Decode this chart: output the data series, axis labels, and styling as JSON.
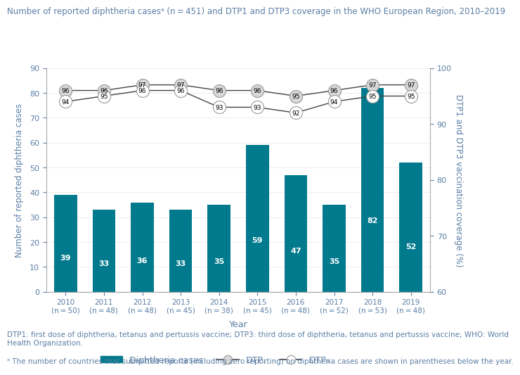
{
  "title": "Number of reported diphtheria casesᵃ (n = 451) and DTP1 and DTP3 coverage in the WHO European Region, 2010–2019",
  "years": [
    2010,
    2011,
    2012,
    2013,
    2014,
    2015,
    2016,
    2017,
    2018,
    2019
  ],
  "year_labels": [
    "2010\n(n = 50)",
    "2011\n(n = 48)",
    "2012\n(n = 48)",
    "2013\n(n = 45)",
    "2014\n(n = 38)",
    "2015\n(n = 45)",
    "2016\n(n = 48)",
    "2017\n(n = 52)",
    "2018\n(n = 53)",
    "2019\n(n = 48)"
  ],
  "diphtheria_cases": [
    39,
    33,
    36,
    33,
    35,
    59,
    47,
    35,
    82,
    52
  ],
  "dtp1": [
    96,
    96,
    97,
    97,
    96,
    96,
    95,
    96,
    97,
    97
  ],
  "dtp3": [
    94,
    95,
    96,
    96,
    93,
    93,
    92,
    94,
    95,
    95
  ],
  "bar_color": "#007A8C",
  "text_color": "#5B7FA6",
  "line_color": "#444444",
  "marker_face_color": "#D8D8D8",
  "marker_edge_color": "#999999",
  "ylabel_left": "Number of reported diphtheria cases",
  "ylabel_right": "DTP1 and DTP3 vaccination coverage (%)",
  "xlabel": "Year",
  "ylim_left": [
    0,
    90
  ],
  "ylim_right": [
    60,
    100
  ],
  "yticks_left": [
    0,
    10,
    20,
    30,
    40,
    50,
    60,
    70,
    80,
    90
  ],
  "yticks_right": [
    60,
    70,
    80,
    90,
    100
  ],
  "footnote1": "DTP1: first dose of diphtheria, tetanus and pertussis vaccine; DTP3: third dose of diphtheria, tetanus and pertussis vaccine; WHO: World\nHealth Organization.",
  "footnote2": "ᵃ The number of countries that submitted reports (including zero reporting) on diphtheria cases are shown in parentheses below the year."
}
